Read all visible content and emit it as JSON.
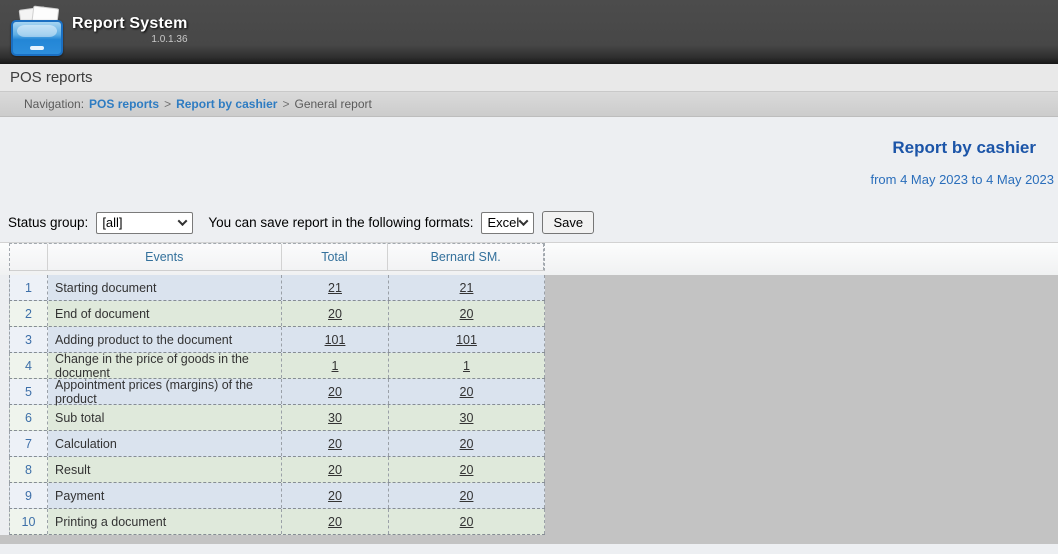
{
  "app": {
    "title": "Report System",
    "version": "1.0.1.36"
  },
  "posbar": {
    "label": "POS reports"
  },
  "breadcrumb": {
    "label": "Navigation:",
    "links": [
      "POS reports",
      "Report by cashier"
    ],
    "separator": ">",
    "current": "General report"
  },
  "report": {
    "title": "Report by cashier",
    "period": "from 4 May 2023 to 4 May 2023"
  },
  "controls": {
    "status_label": "Status group:",
    "status_value": "[all]",
    "save_text": "You can save report in the following formats:",
    "format_value": "Excel",
    "save_button": "Save"
  },
  "table": {
    "headers": [
      "",
      "Events",
      "Total",
      "Bernard SM."
    ],
    "rows": [
      {
        "num": "1",
        "event": "Starting document",
        "total": "21",
        "bernard": "21"
      },
      {
        "num": "2",
        "event": "End of document",
        "total": "20",
        "bernard": "20"
      },
      {
        "num": "3",
        "event": "Adding product to the document",
        "total": "101",
        "bernard": "101"
      },
      {
        "num": "4",
        "event": "Change in the price of goods in the document",
        "total": "1",
        "bernard": "1"
      },
      {
        "num": "5",
        "event": "Appointment prices (margins) of the product",
        "total": "20",
        "bernard": "20"
      },
      {
        "num": "6",
        "event": "Sub total",
        "total": "30",
        "bernard": "30"
      },
      {
        "num": "7",
        "event": "Calculation",
        "total": "20",
        "bernard": "20"
      },
      {
        "num": "8",
        "event": "Result",
        "total": "20",
        "bernard": "20"
      },
      {
        "num": "9",
        "event": "Payment",
        "total": "20",
        "bernard": "20"
      },
      {
        "num": "10",
        "event": "Printing a document",
        "total": "20",
        "bernard": "20"
      }
    ]
  },
  "colors": {
    "topbar": "#474747",
    "accent_link": "#2e7cc2",
    "title_blue": "#1c55a8",
    "period_blue": "#2a6ebb",
    "header_text": "#34719c",
    "row_blue": "#dae3ee",
    "row_green": "#dfe9db",
    "body_gray": "#c3c3c3"
  }
}
